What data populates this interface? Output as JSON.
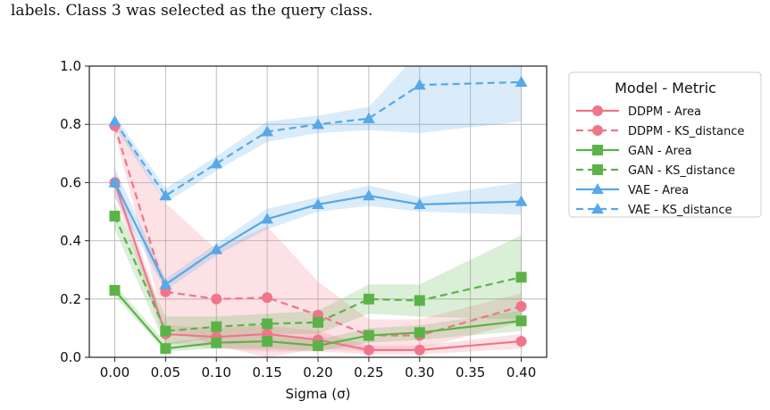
{
  "caption": "labels. Class 3 was selected as the query class.",
  "chart_data": {
    "type": "line",
    "xlabel": "Sigma (σ)",
    "ylabel": "",
    "xlim": [
      -0.025,
      0.425
    ],
    "ylim": [
      0,
      1
    ],
    "x": [
      0.0,
      0.05,
      0.1,
      0.15,
      0.2,
      0.25,
      0.3,
      0.4
    ],
    "xticks": [
      "0.00",
      "0.05",
      "0.10",
      "0.15",
      "0.20",
      "0.25",
      "0.30",
      "0.35",
      "0.40"
    ],
    "xtick_values": [
      0.0,
      0.05,
      0.1,
      0.15,
      0.2,
      0.25,
      0.3,
      0.35,
      0.4
    ],
    "yticks": [
      "0.0",
      "0.2",
      "0.4",
      "0.6",
      "0.8",
      "1.0"
    ],
    "ytick_values": [
      0.0,
      0.2,
      0.4,
      0.6,
      0.8,
      1.0
    ],
    "grid": true,
    "legend": {
      "title": "Model - Metric",
      "placement": "outside-right"
    },
    "series": [
      {
        "name": "DDPM - Area",
        "color": "#f0758a",
        "dash": "solid",
        "marker": "circle",
        "values": [
          0.6,
          0.08,
          0.07,
          0.08,
          0.06,
          0.025,
          0.025,
          0.055
        ],
        "band_low": [
          0.56,
          0.05,
          0.03,
          0.02,
          0.02,
          0.01,
          0.01,
          0.03
        ],
        "band_high": [
          0.64,
          0.11,
          0.1,
          0.11,
          0.09,
          0.04,
          0.04,
          0.08
        ]
      },
      {
        "name": "DDPM - KS_distance",
        "color": "#f0758a",
        "dash": "dashed",
        "marker": "circle",
        "values": [
          0.795,
          0.225,
          0.2,
          0.205,
          0.145,
          0.075,
          0.075,
          0.175
        ],
        "band_low": [
          0.77,
          0.1,
          0.04,
          0.0,
          0.03,
          0.02,
          0.03,
          0.12
        ],
        "band_high": [
          0.82,
          0.53,
          0.37,
          0.45,
          0.26,
          0.13,
          0.13,
          0.22
        ]
      },
      {
        "name": "GAN - Area",
        "color": "#5bb348",
        "dash": "solid",
        "marker": "square",
        "values": [
          0.23,
          0.03,
          0.05,
          0.055,
          0.04,
          0.075,
          0.085,
          0.125
        ],
        "band_low": [
          0.21,
          0.02,
          0.03,
          0.03,
          0.02,
          0.05,
          0.06,
          0.09
        ],
        "band_high": [
          0.25,
          0.05,
          0.07,
          0.08,
          0.06,
          0.1,
          0.11,
          0.16
        ]
      },
      {
        "name": "GAN - KS_distance",
        "color": "#5bb348",
        "dash": "dashed",
        "marker": "square",
        "values": [
          0.485,
          0.09,
          0.105,
          0.115,
          0.12,
          0.2,
          0.195,
          0.275
        ],
        "band_low": [
          0.44,
          0.04,
          0.07,
          0.08,
          0.08,
          0.15,
          0.14,
          0.13
        ],
        "band_high": [
          0.53,
          0.14,
          0.14,
          0.15,
          0.16,
          0.25,
          0.25,
          0.42
        ]
      },
      {
        "name": "VAE - Area",
        "color": "#56a8e8",
        "dash": "solid",
        "marker": "triangle",
        "values": [
          0.6,
          0.25,
          0.37,
          0.475,
          0.525,
          0.555,
          0.525,
          0.535
        ],
        "band_low": [
          0.55,
          0.23,
          0.35,
          0.44,
          0.5,
          0.52,
          0.5,
          0.49
        ],
        "band_high": [
          0.65,
          0.27,
          0.39,
          0.51,
          0.55,
          0.59,
          0.55,
          0.6
        ]
      },
      {
        "name": "VAE - KS_distance",
        "color": "#56a8e8",
        "dash": "dashed",
        "marker": "triangle",
        "values": [
          0.81,
          0.555,
          0.665,
          0.775,
          0.8,
          0.82,
          0.935,
          0.945
        ],
        "band_low": [
          0.79,
          0.53,
          0.64,
          0.74,
          0.77,
          0.78,
          0.77,
          0.81
        ],
        "band_high": [
          0.83,
          0.58,
          0.69,
          0.81,
          0.83,
          0.86,
          1.05,
          1.05
        ]
      }
    ]
  }
}
